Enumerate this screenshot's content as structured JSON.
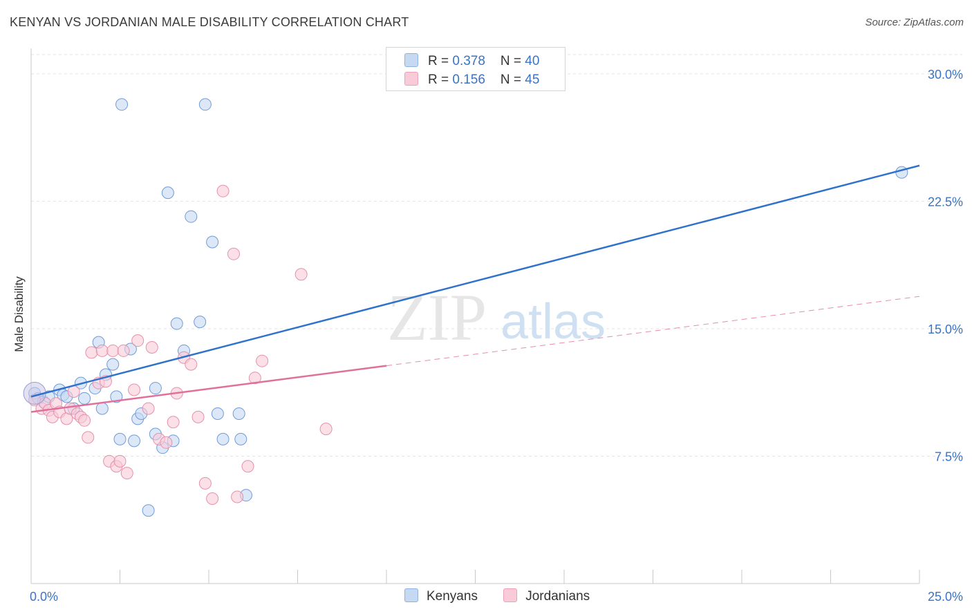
{
  "title": "KENYAN VS JORDANIAN MALE DISABILITY CORRELATION CHART",
  "source": "Source: ZipAtlas.com",
  "watermark": {
    "zip": "ZIP",
    "atlas": "atlas"
  },
  "legend": {
    "rows": [
      {
        "r_label": "R = ",
        "r_value": "0.378",
        "n_label": "N = ",
        "n_value": "40"
      },
      {
        "r_label": "R = ",
        "r_value": "0.156",
        "n_label": "N = ",
        "n_value": "45"
      }
    ]
  },
  "bottom_legend": [
    "Kenyans",
    "Jordanians"
  ],
  "chart_data": {
    "type": "scatter",
    "title": "KENYAN VS JORDANIAN MALE DISABILITY CORRELATION CHART",
    "xlabel": "",
    "ylabel": "Male Disability",
    "xlim": [
      0,
      25
    ],
    "ylim": [
      0,
      31.5
    ],
    "x_tick_labels": [
      "0.0%",
      "25.0%"
    ],
    "y_ticks": [
      7.5,
      15.0,
      22.5,
      30.0
    ],
    "y_tick_labels": [
      "7.5%",
      "15.0%",
      "22.5%",
      "30.0%"
    ],
    "grid": "horizontal dashed",
    "legend_position": "top-center",
    "colors": {
      "kenyans": "#5b8fd6",
      "jordanians": "#e88aa6",
      "kenyans_line": "#2f72cc",
      "jordanians_line": "#e0709a"
    },
    "series": [
      {
        "name": "Kenyans",
        "points": [
          [
            0.1,
            11.2
          ],
          [
            0.2,
            10.9
          ],
          [
            0.35,
            10.7
          ],
          [
            0.5,
            11.0
          ],
          [
            0.8,
            11.4
          ],
          [
            0.9,
            11.1
          ],
          [
            1.0,
            11.0
          ],
          [
            1.2,
            10.3
          ],
          [
            1.4,
            11.8
          ],
          [
            1.5,
            10.9
          ],
          [
            1.8,
            11.5
          ],
          [
            1.9,
            14.2
          ],
          [
            2.1,
            12.3
          ],
          [
            2.0,
            10.3
          ],
          [
            2.3,
            12.9
          ],
          [
            2.55,
            28.2
          ],
          [
            2.4,
            11.0
          ],
          [
            2.5,
            8.5
          ],
          [
            2.8,
            13.8
          ],
          [
            2.9,
            8.4
          ],
          [
            3.0,
            9.7
          ],
          [
            3.1,
            10.0
          ],
          [
            3.3,
            4.3
          ],
          [
            3.5,
            11.5
          ],
          [
            3.5,
            8.8
          ],
          [
            3.7,
            8.0
          ],
          [
            3.85,
            23.0
          ],
          [
            4.0,
            8.4
          ],
          [
            4.1,
            15.3
          ],
          [
            4.3,
            13.7
          ],
          [
            4.5,
            21.6
          ],
          [
            4.75,
            15.4
          ],
          [
            4.9,
            28.2
          ],
          [
            5.1,
            20.1
          ],
          [
            5.25,
            10.0
          ],
          [
            5.4,
            8.5
          ],
          [
            5.9,
            8.5
          ],
          [
            5.85,
            10.0
          ],
          [
            6.05,
            5.2
          ],
          [
            24.5,
            24.2
          ]
        ],
        "trend": {
          "x": [
            0,
            25
          ],
          "y": [
            11.0,
            24.6
          ]
        }
      },
      {
        "name": "Jordanians",
        "points": [
          [
            0.1,
            10.8
          ],
          [
            0.3,
            10.3
          ],
          [
            0.4,
            10.6
          ],
          [
            0.5,
            10.2
          ],
          [
            0.6,
            9.8
          ],
          [
            0.7,
            10.6
          ],
          [
            0.8,
            10.1
          ],
          [
            1.0,
            9.7
          ],
          [
            1.1,
            10.3
          ],
          [
            1.2,
            11.3
          ],
          [
            1.3,
            10.0
          ],
          [
            1.4,
            9.8
          ],
          [
            1.5,
            9.6
          ],
          [
            1.6,
            8.6
          ],
          [
            1.7,
            13.6
          ],
          [
            1.9,
            11.8
          ],
          [
            2.0,
            13.7
          ],
          [
            2.1,
            11.9
          ],
          [
            2.2,
            7.2
          ],
          [
            2.3,
            13.7
          ],
          [
            2.4,
            6.9
          ],
          [
            2.5,
            7.2
          ],
          [
            2.6,
            13.7
          ],
          [
            2.7,
            6.5
          ],
          [
            2.9,
            11.4
          ],
          [
            3.0,
            14.3
          ],
          [
            3.3,
            10.3
          ],
          [
            3.4,
            13.9
          ],
          [
            3.6,
            8.5
          ],
          [
            3.8,
            8.3
          ],
          [
            4.0,
            9.5
          ],
          [
            4.1,
            11.2
          ],
          [
            4.3,
            13.3
          ],
          [
            4.5,
            12.9
          ],
          [
            4.7,
            9.8
          ],
          [
            4.9,
            5.9
          ],
          [
            5.1,
            5.0
          ],
          [
            5.4,
            23.1
          ],
          [
            5.7,
            19.4
          ],
          [
            5.8,
            5.1
          ],
          [
            6.1,
            6.9
          ],
          [
            6.3,
            12.1
          ],
          [
            6.5,
            13.1
          ],
          [
            7.6,
            18.2
          ],
          [
            8.3,
            9.1
          ]
        ],
        "trend": {
          "x": [
            0,
            25
          ],
          "y": [
            10.1,
            16.9
          ],
          "solid_until_x": 10
        }
      }
    ]
  }
}
